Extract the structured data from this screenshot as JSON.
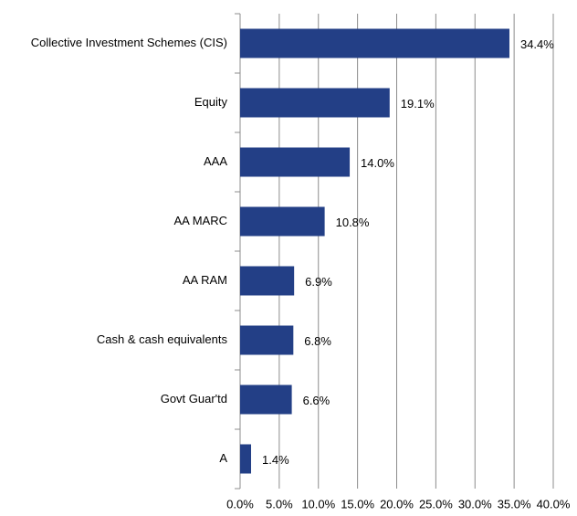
{
  "chart_data": {
    "type": "bar",
    "orientation": "horizontal",
    "categories": [
      "Collective Investment Schemes (CIS)",
      "Equity",
      "AAA",
      "AA MARC",
      "AA RAM",
      "Cash & cash equivalents",
      "Govt Guar'td",
      "A"
    ],
    "values": [
      34.4,
      19.1,
      14.0,
      10.8,
      6.9,
      6.8,
      6.6,
      1.4
    ],
    "value_labels": [
      "34.4%",
      "19.1%",
      "14.0%",
      "10.8%",
      "6.9%",
      "6.8%",
      "6.6%",
      "1.4%"
    ],
    "color": "#233f86",
    "xlim": [
      0,
      40
    ],
    "xticks": [
      {
        "value": 0,
        "label": "0.0%"
      },
      {
        "value": 5,
        "label": "5.0%"
      },
      {
        "value": 10,
        "label": "10.0%"
      },
      {
        "value": 15,
        "label": "15.0%"
      },
      {
        "value": 20,
        "label": "20.0%"
      },
      {
        "value": 25,
        "label": "25.0%"
      },
      {
        "value": 30,
        "label": "30.0%"
      },
      {
        "value": 35,
        "label": "35.0%"
      },
      {
        "value": 40,
        "label": "40.0%"
      }
    ],
    "grid": true
  }
}
